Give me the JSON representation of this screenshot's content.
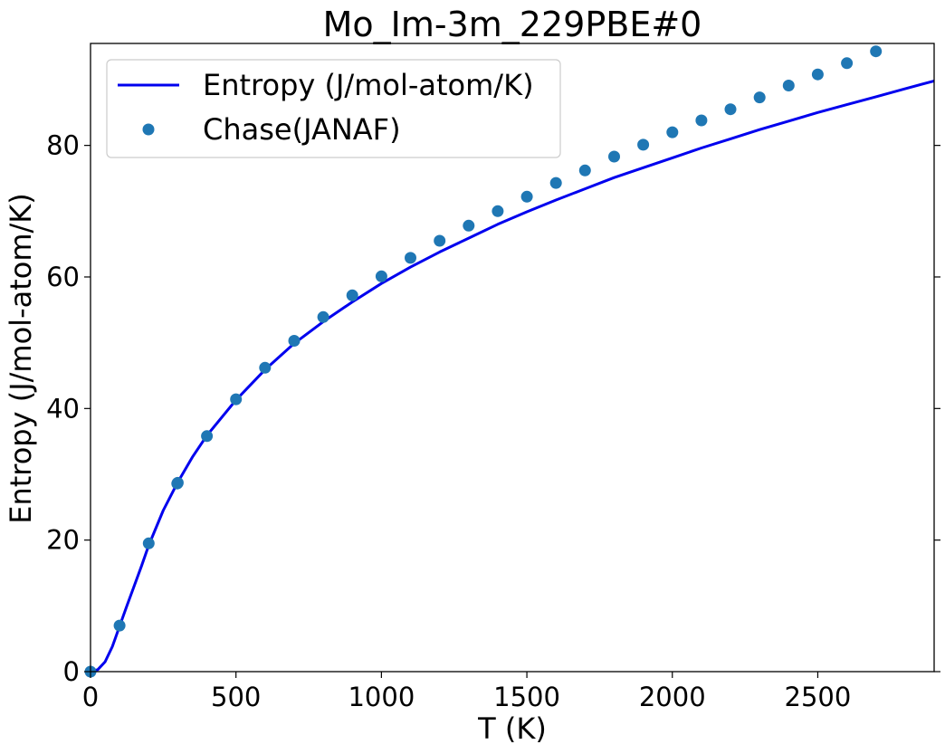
{
  "chart_data": {
    "type": "line",
    "title": "Mo_Im-3m_229PBE#0",
    "xlabel": "T (K)",
    "ylabel": "Entropy (J/mol-atom/K)",
    "xlim": [
      0,
      2900
    ],
    "ylim": [
      0,
      95.5
    ],
    "xticks": [
      0,
      500,
      1000,
      1500,
      2000,
      2500
    ],
    "yticks": [
      0,
      20,
      40,
      60,
      80
    ],
    "xtick_labels": [
      "0",
      "500",
      "1000",
      "1500",
      "2000",
      "2500"
    ],
    "ytick_labels": [
      "0",
      "20",
      "40",
      "60",
      "80"
    ],
    "grid": false,
    "legend_position": "top-left",
    "series": [
      {
        "name": "Entropy (J/mol-atom/K)",
        "kind": "line",
        "color": "#0000ee",
        "x": [
          0,
          25,
          50,
          75,
          100,
          125,
          150,
          175,
          200,
          250,
          300,
          350,
          400,
          500,
          600,
          700,
          800,
          900,
          1000,
          1100,
          1200,
          1300,
          1400,
          1500,
          1600,
          1700,
          1800,
          1900,
          2000,
          2100,
          2200,
          2300,
          2400,
          2500,
          2600,
          2700,
          2800,
          2900
        ],
        "y": [
          0,
          0.3,
          1.5,
          3.8,
          6.9,
          10.0,
          13.0,
          16.0,
          19.2,
          24.5,
          28.8,
          32.6,
          35.9,
          41.3,
          45.9,
          49.9,
          53.2,
          56.2,
          59.0,
          61.5,
          63.8,
          65.9,
          68.0,
          69.9,
          71.7,
          73.4,
          75.1,
          76.6,
          78.1,
          79.6,
          81.0,
          82.4,
          83.7,
          85.0,
          86.2,
          87.4,
          88.6,
          89.8
        ]
      },
      {
        "name": "Chase(JANAF)",
        "kind": "scatter",
        "color": "#1f77b4",
        "x": [
          0,
          100,
          200,
          298.15,
          300,
          400,
          500,
          600,
          700,
          800,
          900,
          1000,
          1100,
          1200,
          1300,
          1400,
          1500,
          1600,
          1700,
          1800,
          1900,
          2000,
          2100,
          2200,
          2300,
          2400,
          2500,
          2600,
          2700
        ],
        "y": [
          0,
          7.0,
          19.5,
          28.6,
          28.7,
          35.8,
          41.4,
          46.2,
          50.3,
          53.9,
          57.2,
          60.1,
          62.9,
          65.5,
          67.8,
          70.0,
          72.2,
          74.3,
          76.2,
          78.3,
          80.1,
          82.0,
          83.8,
          85.5,
          87.3,
          89.1,
          90.8,
          92.5,
          94.3
        ]
      }
    ]
  }
}
